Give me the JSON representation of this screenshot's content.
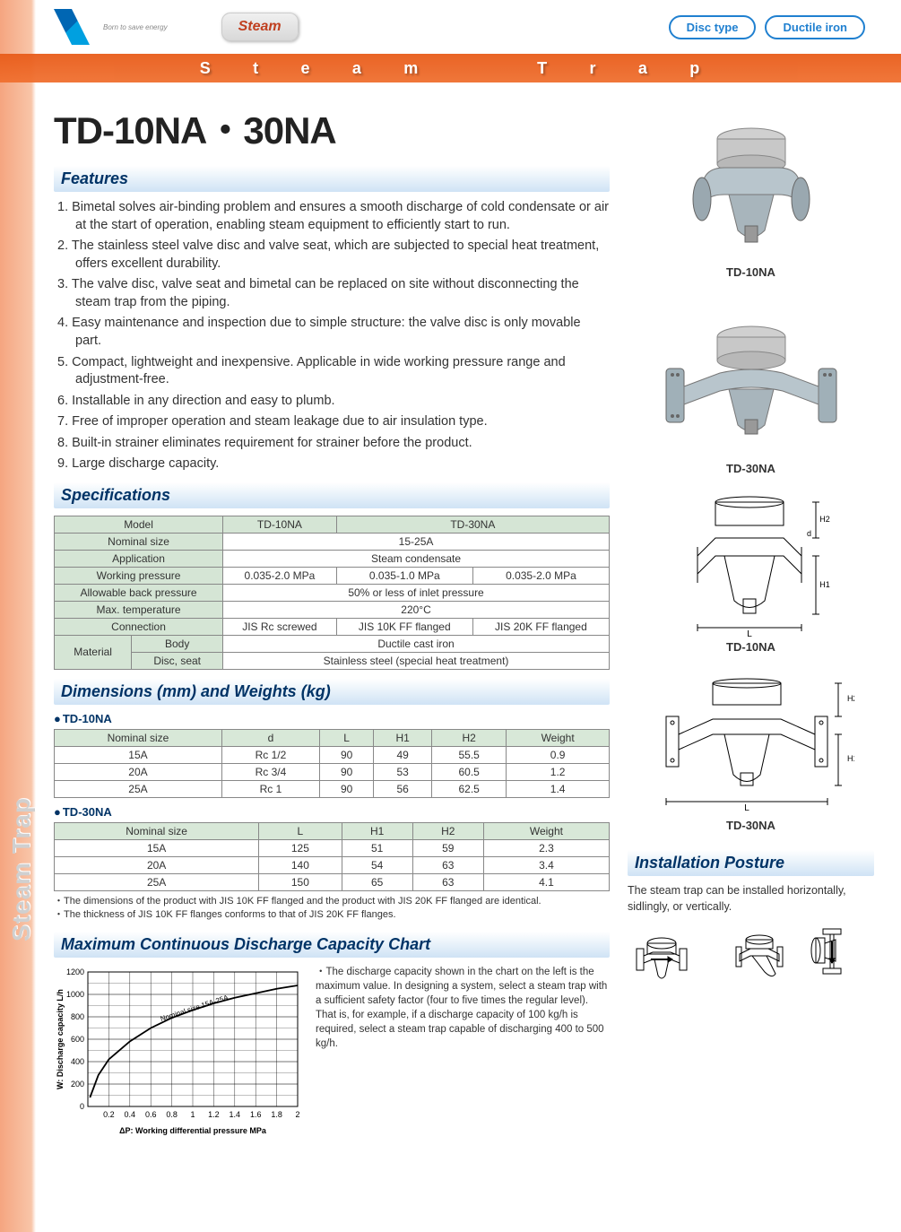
{
  "header": {
    "logo_tag": "Born to save energy",
    "steam_button": "Steam",
    "pills": [
      "Disc type",
      "Ductile iron"
    ],
    "band_letters": [
      "S",
      "t",
      "e",
      "a",
      "m",
      "T",
      "r",
      "a",
      "p"
    ]
  },
  "side_label": "Steam Trap",
  "title": "TD-10NA・30NA",
  "features_heading": "Features",
  "features": [
    "Bimetal solves air-binding problem and ensures a smooth discharge of cold condensate or air at the start of operation, enabling steam equipment to efficiently start to run.",
    "The stainless steel valve disc and valve seat, which are subjected to special heat treatment, offers excellent durability.",
    "The valve disc, valve seat and bimetal can be replaced on site without disconnecting the steam trap from the piping.",
    "Easy maintenance and inspection due to simple structure: the valve disc is only movable part.",
    "Compact, lightweight and inexpensive. Applicable in wide working pressure range and adjustment-free.",
    "Installable in any direction and easy to plumb.",
    "Free of improper operation and steam leakage due to air insulation type.",
    "Built-in strainer eliminates requirement for strainer before the product.",
    "Large discharge capacity."
  ],
  "specs_heading": "Specifications",
  "specs_table": {
    "headers": {
      "model": "Model",
      "td10": "TD-10NA",
      "td30": "TD-30NA"
    },
    "rows": [
      {
        "label": "Nominal size",
        "value_full": "15-25A"
      },
      {
        "label": "Application",
        "value_full": "Steam condensate"
      },
      {
        "label": "Working pressure",
        "v1": "0.035-2.0 MPa",
        "v2": "0.035-1.0 MPa",
        "v3": "0.035-2.0 MPa"
      },
      {
        "label": "Allowable back pressure",
        "value_full": "50% or less of inlet pressure"
      },
      {
        "label": "Max. temperature",
        "value_full": "220°C"
      },
      {
        "label": "Connection",
        "v1": "JIS Rc screwed",
        "v2": "JIS 10K FF flanged",
        "v3": "JIS 20K FF flanged"
      }
    ],
    "material": {
      "label": "Material",
      "body_label": "Body",
      "body_val": "Ductile cast iron",
      "disc_label": "Disc, seat",
      "disc_val": "Stainless steel (special heat treatment)"
    }
  },
  "dims_heading": "Dimensions (mm) and Weights (kg)",
  "dims_10": {
    "name": "TD-10NA",
    "columns": [
      "Nominal size",
      "d",
      "L",
      "H1",
      "H2",
      "Weight"
    ],
    "rows": [
      [
        "15A",
        "Rc 1/2",
        "90",
        "49",
        "55.5",
        "0.9"
      ],
      [
        "20A",
        "Rc 3/4",
        "90",
        "53",
        "60.5",
        "1.2"
      ],
      [
        "25A",
        "Rc 1",
        "90",
        "56",
        "62.5",
        "1.4"
      ]
    ]
  },
  "dims_30": {
    "name": "TD-30NA",
    "columns": [
      "Nominal size",
      "L",
      "H1",
      "H2",
      "Weight"
    ],
    "rows": [
      [
        "15A",
        "125",
        "51",
        "59",
        "2.3"
      ],
      [
        "20A",
        "140",
        "54",
        "63",
        "3.4"
      ],
      [
        "25A",
        "150",
        "65",
        "63",
        "4.1"
      ]
    ]
  },
  "dims_notes": [
    "The dimensions of the product with JIS 10K FF flanged and the product with JIS 20K FF flanged are identical.",
    "The thickness of JIS 10K FF flanges conforms to that of JIS 20K FF flanges."
  ],
  "chart_heading": "Maximum Continuous Discharge Capacity Chart",
  "chart": {
    "type": "line",
    "xlabel": "ΔP: Working differential pressure  MPa",
    "ylabel": "W: Discharge capacity  L/h",
    "xlim": [
      0,
      2.0
    ],
    "xtick_step": 0.2,
    "ylim": [
      0,
      1200
    ],
    "ytick_step": 200,
    "xticks": [
      "0.2",
      "0.4",
      "0.6",
      "0.8",
      "1",
      "1.2",
      "1.4",
      "1.6",
      "1.8",
      "2"
    ],
    "yticks": [
      "0",
      "200",
      "400",
      "600",
      "800",
      "1000",
      "1200"
    ],
    "curve_label": "Nominal size 15A-25A",
    "curve_x": [
      0.02,
      0.1,
      0.2,
      0.4,
      0.6,
      0.8,
      1.0,
      1.2,
      1.4,
      1.6,
      1.8,
      2.0
    ],
    "curve_y": [
      80,
      280,
      420,
      580,
      700,
      790,
      860,
      920,
      970,
      1010,
      1050,
      1080
    ],
    "line_color": "#000000",
    "grid_color": "#000000",
    "background_color": "#ffffff",
    "label_fontsize": 9
  },
  "chart_note": "The discharge capacity shown in the chart on the left is the maximum value. In designing a system, select a steam trap with a sufficient safety factor (four to five times the regular level). That is, for example, if a discharge capacity of 100 kg/h is required, select a steam trap capable of discharging 400 to 500 kg/h.",
  "products": {
    "p1_label": "TD-10NA",
    "p2_label": "TD-30NA",
    "d1_label": "TD-10NA",
    "d2_label": "TD-30NA"
  },
  "install_heading": "Installation Posture",
  "install_text": "The steam trap can be installed horizontally, sidlingly, or vertically."
}
